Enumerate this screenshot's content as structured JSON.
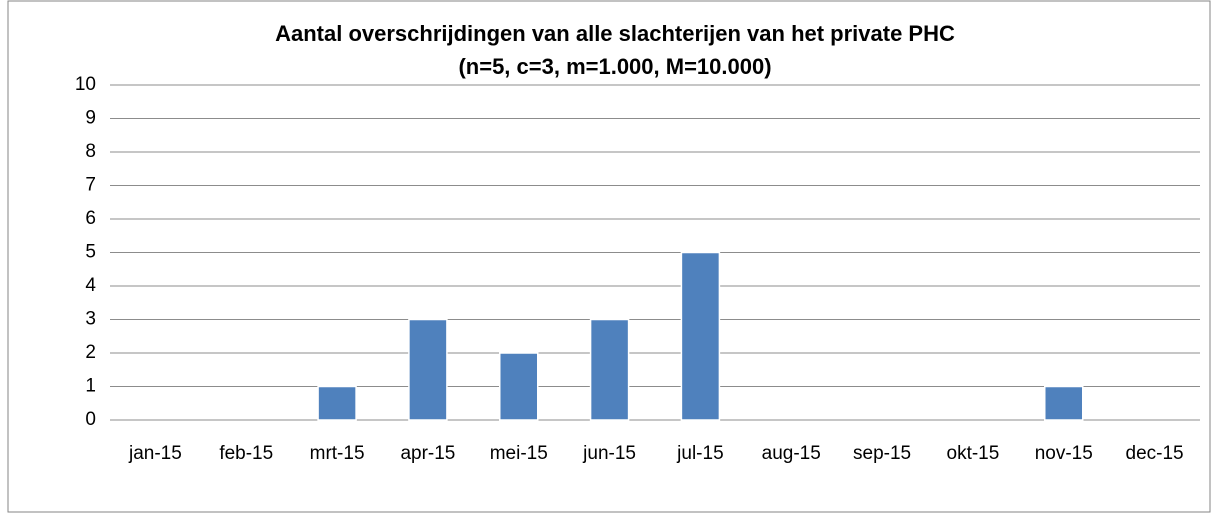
{
  "chart_data": {
    "type": "bar",
    "title": "Aantal overschrijdingen  van alle slachterijen  van het private PHC",
    "subtitle": "(n=5, c=3, m=1.000, M=10.000)",
    "categories": [
      "jan-15",
      "feb-15",
      "mrt-15",
      "apr-15",
      "mei-15",
      "jun-15",
      "jul-15",
      "aug-15",
      "sep-15",
      "okt-15",
      "nov-15",
      "dec-15"
    ],
    "values": [
      0,
      0,
      1,
      3,
      2,
      3,
      5,
      0,
      0,
      0,
      1,
      0
    ],
    "color": "#4f81bd",
    "ylim": [
      0,
      10
    ],
    "yticks": [
      0,
      1,
      2,
      3,
      4,
      5,
      6,
      7,
      8,
      9,
      10
    ],
    "grid": true
  }
}
